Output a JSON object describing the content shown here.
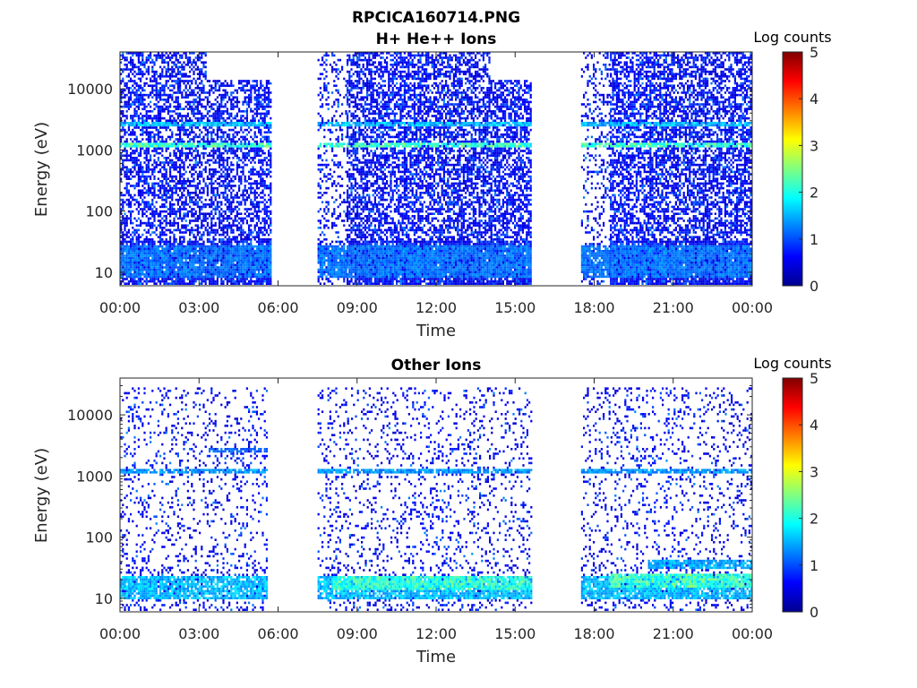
{
  "figure": {
    "title": "RPCICA160714.PNG"
  },
  "chart_data": [
    {
      "type": "heatmap",
      "title": "H+ He++ Ions",
      "xlabel": "Time",
      "ylabel": "Energy (eV)",
      "x_ticks": [
        "00:00",
        "03:00",
        "06:00",
        "09:00",
        "12:00",
        "15:00",
        "18:00",
        "21:00",
        "00:00"
      ],
      "xlim_hours": [
        0,
        24
      ],
      "y_scale": "log",
      "y_ticks": [
        10,
        100,
        1000,
        10000
      ],
      "y_tick_labels": [
        "10",
        "100",
        "1000",
        "10000"
      ],
      "ylim": [
        6,
        40000
      ],
      "colorbar": {
        "label": "Log counts",
        "ticks": [
          "0",
          "1",
          "2",
          "3",
          "4",
          "5"
        ],
        "range": [
          0,
          5
        ],
        "colormap": "jet"
      },
      "data_gaps_hours": [
        [
          5.75,
          7.5
        ],
        [
          15.6,
          17.5
        ]
      ],
      "segments": [
        {
          "start": 0.0,
          "end": 5.75,
          "density": 0.55,
          "top": 40000,
          "step_time": 3.25,
          "step_top": 15000
        },
        {
          "start": 7.5,
          "end": 8.6,
          "density": 0.22,
          "top": 40000
        },
        {
          "start": 8.6,
          "end": 15.6,
          "density": 0.6,
          "top": 40000,
          "step_time": 14.0,
          "step_top": 15000
        },
        {
          "start": 17.5,
          "end": 18.6,
          "density": 0.22,
          "top": 40000
        },
        {
          "start": 18.6,
          "end": 24.0,
          "density": 0.6,
          "top": 40000
        }
      ],
      "bands": [
        {
          "energy": 1200,
          "level": 2.0,
          "spread": 0.04
        },
        {
          "energy": 2600,
          "level": 1.3,
          "spread": 0.05
        },
        {
          "energy": 15,
          "level": 0.9,
          "spread": 0.25
        }
      ]
    },
    {
      "type": "heatmap",
      "title": "Other Ions",
      "xlabel": "Time",
      "ylabel": "Energy (eV)",
      "x_ticks": [
        "00:00",
        "03:00",
        "06:00",
        "09:00",
        "12:00",
        "15:00",
        "18:00",
        "21:00",
        "00:00"
      ],
      "xlim_hours": [
        0,
        24
      ],
      "y_scale": "log",
      "y_ticks": [
        10,
        100,
        1000,
        10000
      ],
      "y_tick_labels": [
        "10",
        "100",
        "1000",
        "10000"
      ],
      "ylim": [
        6,
        40000
      ],
      "colorbar": {
        "label": "Log counts",
        "ticks": [
          "0",
          "1",
          "2",
          "3",
          "4",
          "5"
        ],
        "range": [
          0,
          5
        ],
        "colormap": "jet"
      },
      "data_gaps_hours": [
        [
          5.6,
          7.5
        ],
        [
          15.6,
          17.5
        ]
      ],
      "segments": [
        {
          "start": 0.0,
          "end": 5.6,
          "density": 0.14,
          "top": 30000
        },
        {
          "start": 7.5,
          "end": 15.6,
          "density": 0.14,
          "top": 30000
        },
        {
          "start": 17.5,
          "end": 24.0,
          "density": 0.14,
          "top": 30000
        }
      ],
      "bands": [
        {
          "energy": 1200,
          "level": 1.1,
          "spread": 0.05
        },
        {
          "energy": 2600,
          "level": 0.8,
          "spread": 0.04,
          "start": 3.3,
          "end": 5.6
        },
        {
          "energy": 15,
          "level": 1.3,
          "spread": 0.2
        },
        {
          "energy": 18,
          "level": 1.9,
          "spread": 0.12,
          "start": 8.0,
          "end": 15.6
        },
        {
          "energy": 20,
          "level": 2.0,
          "spread": 0.12,
          "start": 18.5,
          "end": 24.0
        },
        {
          "energy": 35,
          "level": 1.2,
          "spread": 0.08,
          "start": 20.0,
          "end": 24.0
        }
      ]
    }
  ]
}
